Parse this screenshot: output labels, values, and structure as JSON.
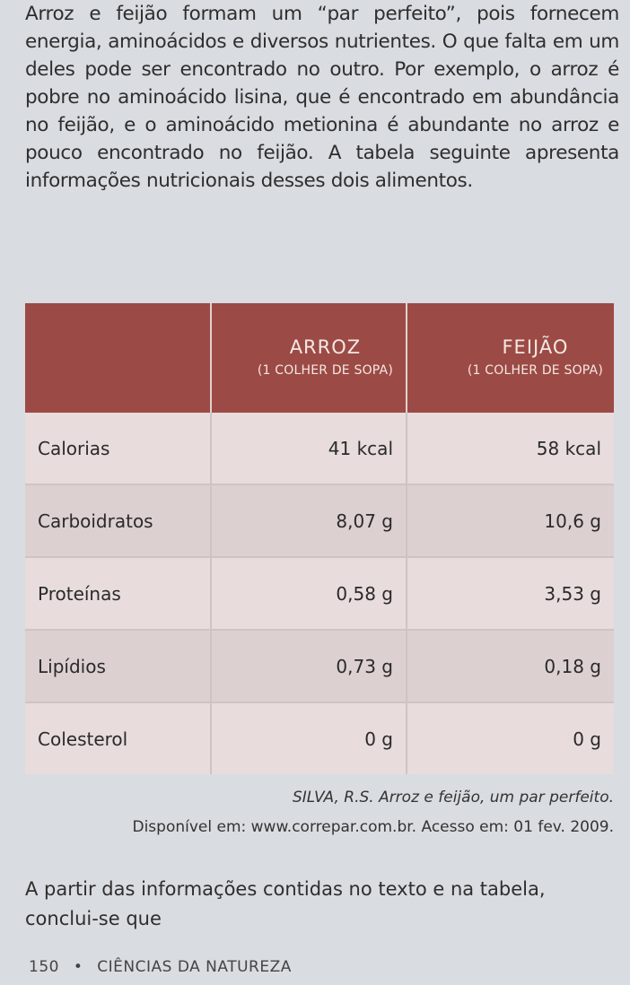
{
  "intro": {
    "text": "Arroz e feijão formam um “par perfeito”, pois fornecem energia, aminoácidos e diversos nutrientes. O que falta em um deles pode ser encontrado no outro. Por exemplo, o arroz é pobre no aminoácido lisina, que é encontrado em abundância no feijão, e o aminoácido metionina é abundante no arroz e pouco encontrado no feijão. A tabela seguinte apresenta informações nutricionais desses dois alimentos."
  },
  "table": {
    "columns": [
      {
        "name": "ARROZ",
        "sub": "(1 COLHER DE SOPA)"
      },
      {
        "name": "FEIJÃO",
        "sub": "(1 COLHER DE SOPA)"
      }
    ],
    "rows": [
      {
        "label": "Calorias",
        "arroz": "41 kcal",
        "feijao": "58 kcal"
      },
      {
        "label": "Carboidratos",
        "arroz": "8,07 g",
        "feijao": "10,6 g"
      },
      {
        "label": "Proteínas",
        "arroz": "0,58 g",
        "feijao": "3,53 g"
      },
      {
        "label": "Lipídios",
        "arroz": "0,73 g",
        "feijao": "0,18 g"
      },
      {
        "label": "Colesterol",
        "arroz": "0 g",
        "feijao": "0 g"
      }
    ],
    "header_color": "#9c4a45"
  },
  "source": {
    "citation": "SILVA, R.S. Arroz e feijão, um par perfeito.",
    "availability": "Disponível em: www.correpar.com.br. Acesso em: 01 fev. 2009."
  },
  "question": {
    "text": "A partir das informações contidas no texto e na tabela, conclui-se que"
  },
  "footer": {
    "page_number": "150",
    "separator": "•",
    "section": "CIÊNCIAS DA NATUREZA"
  }
}
